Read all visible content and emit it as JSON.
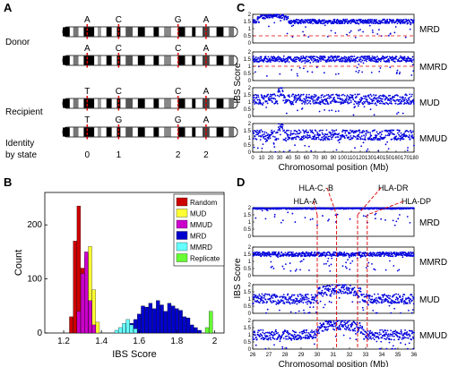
{
  "panel_labels": [
    "A",
    "B",
    "C",
    "D"
  ],
  "panel_a": {
    "group_labels": [
      "Donor",
      "Recipient"
    ],
    "identity_label": [
      "Identity",
      "by state"
    ],
    "alleles": {
      "donor_1": [
        "A",
        "C",
        "G",
        "A"
      ],
      "donor_2": [
        "A",
        "C",
        "C",
        "A"
      ],
      "recipient_1": [
        "T",
        "C",
        "C",
        "A"
      ],
      "recipient_2": [
        "T",
        "G",
        "G",
        "A"
      ]
    },
    "ibs_values": [
      "0",
      "1",
      "2",
      "2"
    ]
  },
  "chart_data": [
    {
      "type": "bar",
      "panel": "B",
      "xlabel": "IBS Score",
      "ylabel": "Count",
      "xlim": [
        1.1,
        2.05
      ],
      "ylim": [
        0,
        260
      ],
      "xticks": [
        "1.2",
        "1.4",
        "1.6",
        "1.8",
        "2"
      ],
      "yticks": [
        "0",
        "100",
        "200"
      ],
      "legend_position": "top-right",
      "series": [
        {
          "name": "Random",
          "color": "#cc0000",
          "x": [
            1.24,
            1.26,
            1.28,
            1.3,
            1.32
          ],
          "values": [
            30,
            170,
            235,
            120,
            20
          ]
        },
        {
          "name": "MUD",
          "color": "#ffff33",
          "x": [
            1.3,
            1.32,
            1.34,
            1.36,
            1.38
          ],
          "values": [
            70,
            140,
            160,
            80,
            20
          ]
        },
        {
          "name": "MMUD",
          "color": "#cc00cc",
          "x": [
            1.28,
            1.3,
            1.32,
            1.34,
            1.36
          ],
          "values": [
            40,
            110,
            150,
            60,
            15
          ]
        },
        {
          "name": "MRD",
          "color": "#0000cc",
          "x": [
            1.52,
            1.54,
            1.56,
            1.58,
            1.6,
            1.62,
            1.64,
            1.66,
            1.68,
            1.7,
            1.72,
            1.74,
            1.76,
            1.78,
            1.8,
            1.82,
            1.84,
            1.86,
            1.88,
            1.9,
            1.92
          ],
          "values": [
            5,
            10,
            18,
            25,
            35,
            50,
            48,
            55,
            45,
            60,
            52,
            40,
            55,
            50,
            45,
            42,
            30,
            28,
            15,
            10,
            5
          ]
        },
        {
          "name": "MMRD",
          "color": "#66ffff",
          "x": [
            1.48,
            1.5,
            1.52,
            1.54,
            1.56,
            1.58
          ],
          "values": [
            5,
            10,
            18,
            25,
            15,
            8
          ]
        },
        {
          "name": "Replicate",
          "color": "#66ff33",
          "x": [
            1.96,
            1.98
          ],
          "values": [
            10,
            40
          ]
        }
      ]
    },
    {
      "type": "scatter",
      "panel": "C",
      "xlabel": "Chromosomal position (Mb)",
      "ylabel": "IBS Score",
      "xlim": [
        0,
        180
      ],
      "ylim": [
        0,
        2
      ],
      "xticks": [
        "0",
        "10",
        "20",
        "30",
        "40",
        "50",
        "60",
        "70",
        "80",
        "90",
        "100",
        "110",
        "120",
        "130",
        "140",
        "150",
        "160",
        "170",
        "180"
      ],
      "yticks": [
        "0",
        "0.5",
        "1",
        "1.5",
        "2"
      ],
      "series": [
        {
          "name": "MRD",
          "baseline": 1.5,
          "spread": 0.15,
          "bump": {
            "from": 5,
            "to": 40,
            "peak": 1.9
          },
          "dashed_level": 0.5
        },
        {
          "name": "MMRD",
          "baseline": 1.5,
          "spread": 0.2,
          "dashed_level": 1.0
        },
        {
          "name": "MUD",
          "baseline": 1.2,
          "spread": 0.35,
          "bump": {
            "from": 28,
            "to": 34,
            "peak": 1.8
          }
        },
        {
          "name": "MMUD",
          "baseline": 1.2,
          "spread": 0.35,
          "bump": {
            "from": 28,
            "to": 34,
            "peak": 1.8
          }
        }
      ]
    },
    {
      "type": "scatter",
      "panel": "D",
      "xlabel": "Chromosomal position (Mb)",
      "ylabel": "IBS Score",
      "xlim": [
        26,
        36
      ],
      "ylim": [
        0,
        2
      ],
      "xticks": [
        "26",
        "27",
        "28",
        "29",
        "30",
        "31",
        "32",
        "33",
        "34",
        "35",
        "36"
      ],
      "yticks": [
        "0",
        "0.5",
        "1",
        "1.5",
        "2"
      ],
      "annotations": [
        {
          "text": "HLA-C,-B",
          "x": 31.2
        },
        {
          "text": "HLA-A",
          "x": 30.0
        },
        {
          "text": "HLA-DR",
          "x": 32.5
        },
        {
          "text": "HLA-DP",
          "x": 33.1
        }
      ],
      "series": [
        {
          "name": "MRD",
          "baseline": 1.95,
          "spread": 0.05
        },
        {
          "name": "MMRD",
          "baseline": 1.5,
          "spread": 0.15
        },
        {
          "name": "MUD",
          "baseline": 1.0,
          "spread": 0.35,
          "bump": {
            "from": 30.0,
            "to": 32.8,
            "peak": 1.7
          }
        },
        {
          "name": "MMUD",
          "baseline": 1.0,
          "spread": 0.35,
          "bump": {
            "from": 30.0,
            "to": 32.8,
            "peak": 1.7
          }
        }
      ]
    }
  ]
}
